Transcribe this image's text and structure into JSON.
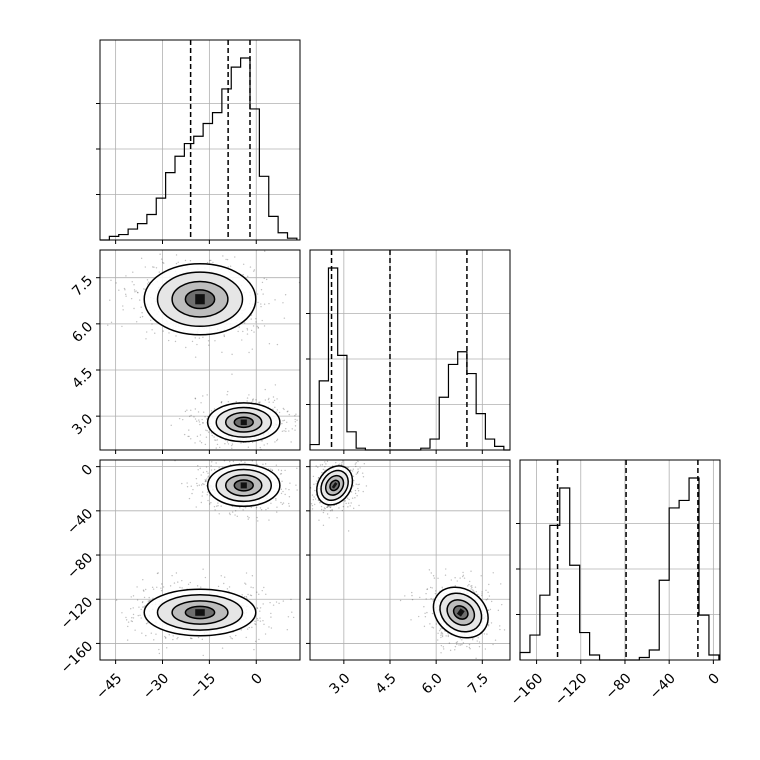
{
  "chart_data": {
    "type": "corner",
    "grid": true,
    "parameters": [
      {
        "ticks": [
          -45,
          -30,
          -15,
          0
        ],
        "tick_labels": [
          "−45",
          "−30",
          "−15",
          "0"
        ],
        "range": [
          -50,
          14
        ],
        "quantiles": [
          -21,
          -9,
          -2
        ],
        "hist": {
          "edges": [
            -50,
            -47,
            -44,
            -41,
            -38,
            -35,
            -32,
            -29,
            -26,
            -23,
            -20,
            -17,
            -14,
            -11,
            -8,
            -5,
            -2,
            1,
            4,
            7,
            10,
            13
          ],
          "counts": [
            0,
            2,
            3,
            6,
            9,
            14,
            23,
            37,
            46,
            53,
            57,
            64,
            70,
            83,
            95,
            100,
            72,
            35,
            13,
            4,
            1
          ]
        }
      },
      {
        "ticks": [
          3.0,
          4.5,
          6.0,
          7.5
        ],
        "tick_labels": [
          "3.0",
          "4.5",
          "6.0",
          "7.5"
        ],
        "range": [
          1.9,
          8.4
        ],
        "quantiles": [
          2.6,
          4.5,
          7.0
        ],
        "hist": {
          "edges": [
            1.9,
            2.2,
            2.5,
            2.8,
            3.1,
            3.4,
            3.7,
            4.0,
            4.3,
            4.6,
            4.9,
            5.2,
            5.5,
            5.8,
            6.1,
            6.4,
            6.7,
            7.0,
            7.3,
            7.6,
            7.9,
            8.2,
            8.4
          ],
          "counts": [
            3,
            38,
            100,
            52,
            10,
            1,
            0,
            0,
            0,
            0,
            0,
            0,
            1,
            6,
            29,
            47,
            54,
            42,
            20,
            6,
            2,
            0
          ]
        }
      },
      {
        "ticks": [
          -160,
          -120,
          -80,
          -40,
          0
        ],
        "tick_labels": [
          "−160",
          "−120",
          "−80",
          "−40",
          "0"
        ],
        "range": [
          -175,
          6
        ],
        "quantiles": [
          -141,
          -79,
          -14
        ],
        "hist": {
          "edges": [
            -175,
            -166,
            -157,
            -148,
            -139,
            -130,
            -121,
            -112,
            -103,
            -94,
            -85,
            -76,
            -67,
            -58,
            -49,
            -40,
            -31,
            -22,
            -13,
            -4,
            5
          ],
          "counts": [
            3,
            10,
            26,
            54,
            69,
            38,
            11,
            2,
            0,
            0,
            0,
            0,
            1,
            4,
            32,
            61,
            64,
            73,
            18,
            2
          ]
        }
      }
    ],
    "clusters_2d": [
      {
        "pair": [
          0,
          1
        ],
        "center": [
          -18,
          6.8
        ],
        "sigma": [
          8.5,
          0.55
        ]
      },
      {
        "pair": [
          0,
          1
        ],
        "center": [
          -4,
          2.8
        ],
        "sigma": [
          5.5,
          0.3
        ]
      },
      {
        "pair": [
          0,
          2
        ],
        "center": [
          -4,
          -17
        ],
        "sigma": [
          5.5,
          9
        ]
      },
      {
        "pair": [
          0,
          2
        ],
        "center": [
          -18,
          -132
        ],
        "sigma": [
          8.5,
          10
        ]
      },
      {
        "pair": [
          1,
          2
        ],
        "center": [
          2.7,
          -17
        ],
        "sigma": [
          0.25,
          9
        ]
      },
      {
        "pair": [
          1,
          2
        ],
        "center": [
          6.8,
          -132
        ],
        "sigma": [
          0.45,
          10
        ]
      }
    ]
  }
}
